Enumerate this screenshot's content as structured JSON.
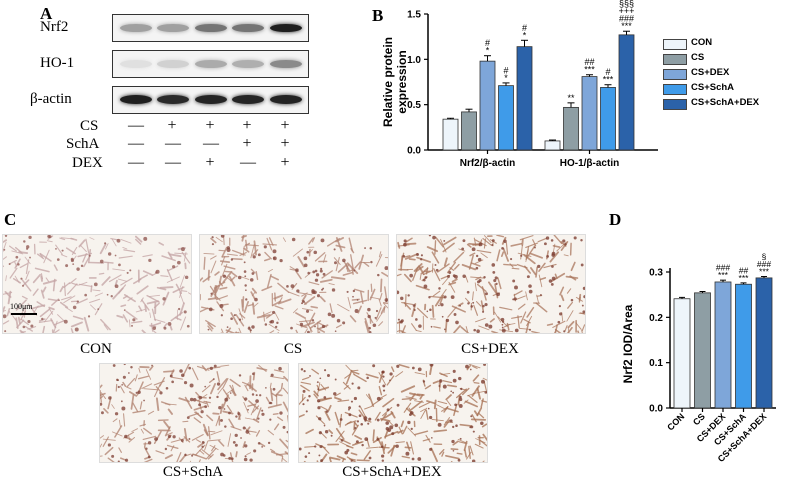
{
  "panels": {
    "a": "A",
    "b": "B",
    "c": "C",
    "d": "D"
  },
  "blot": {
    "rows": [
      {
        "label": "Nrf2",
        "intensity": [
          0.35,
          0.35,
          0.55,
          0.55,
          0.95
        ]
      },
      {
        "label": "HO-1",
        "intensity": [
          0.05,
          0.12,
          0.3,
          0.28,
          0.45
        ]
      },
      {
        "label": "β-actin",
        "intensity": [
          0.95,
          0.9,
          0.92,
          0.92,
          0.93
        ]
      }
    ],
    "conditions": [
      {
        "label": "CS",
        "signs": [
          "—",
          "+",
          "+",
          "+",
          "+"
        ]
      },
      {
        "label": "SchA",
        "signs": [
          "—",
          "—",
          "—",
          "+",
          "+"
        ]
      },
      {
        "label": "DEX",
        "signs": [
          "—",
          "—",
          "+",
          "—",
          "+"
        ]
      }
    ]
  },
  "legend": [
    {
      "name": "CON",
      "color": "#eef5fb"
    },
    {
      "name": "CS",
      "color": "#8e9ea4"
    },
    {
      "name": "CS+DEX",
      "color": "#7ea6d9"
    },
    {
      "name": "CS+SchA",
      "color": "#3f9be9"
    },
    {
      "name": "CS+SchA+DEX",
      "color": "#2b62a9"
    }
  ],
  "micrographs": {
    "scale_bar": "100μm",
    "images": [
      {
        "label": "CON",
        "stain": 0.1
      },
      {
        "label": "CS",
        "stain": 0.55
      },
      {
        "label": "CS+DEX",
        "stain": 0.75
      },
      {
        "label": "CS+SchA",
        "stain": 0.6
      },
      {
        "label": "CS+SchA+DEX",
        "stain": 0.85
      }
    ]
  },
  "chart_data": [
    {
      "type": "bar",
      "ylabel": "Relative protein expression",
      "ylabel_lines": [
        "Relative protein",
        "expression"
      ],
      "categories": [
        "Nrf2/β-actin",
        "HO-1/β-actin"
      ],
      "ylim": [
        0,
        1.5
      ],
      "yticks": [
        "0.0",
        "0.5",
        "1.0",
        "1.5"
      ],
      "series": [
        {
          "name": "CON",
          "values": [
            0.34,
            0.1
          ],
          "errors": [
            0.01,
            0.01
          ],
          "labels": [
            "",
            ""
          ]
        },
        {
          "name": "CS",
          "values": [
            0.42,
            0.47
          ],
          "errors": [
            0.03,
            0.05
          ],
          "labels": [
            "",
            "**"
          ]
        },
        {
          "name": "CS+DEX",
          "values": [
            0.98,
            0.81
          ],
          "errors": [
            0.06,
            0.02
          ],
          "labels": [
            "#\n*",
            "##\n***"
          ]
        },
        {
          "name": "CS+SchA",
          "values": [
            0.71,
            0.69
          ],
          "errors": [
            0.03,
            0.03
          ],
          "labels": [
            "#\n*",
            "#\n***"
          ]
        },
        {
          "name": "CS+SchA+DEX",
          "values": [
            1.14,
            1.27
          ],
          "errors": [
            0.07,
            0.04
          ],
          "labels": [
            "#\n*",
            "§§§\n+++\n###\n***"
          ]
        }
      ]
    },
    {
      "type": "bar",
      "ylabel": "Nrf2  IOD/Area",
      "categories": [
        "CON",
        "CS",
        "CS+DEX",
        "CS+SchA",
        "CS+SchA+DEX"
      ],
      "ylim": [
        0,
        0.3
      ],
      "yticks": [
        "0.0",
        "0.1",
        "0.2",
        "0.3"
      ],
      "values": [
        0.241,
        0.254,
        0.278,
        0.273,
        0.287
      ],
      "errors": [
        0.003,
        0.003,
        0.004,
        0.003,
        0.003
      ],
      "labels": [
        "",
        "",
        "###\n***",
        "##\n***",
        "§\n###\n***"
      ]
    }
  ]
}
